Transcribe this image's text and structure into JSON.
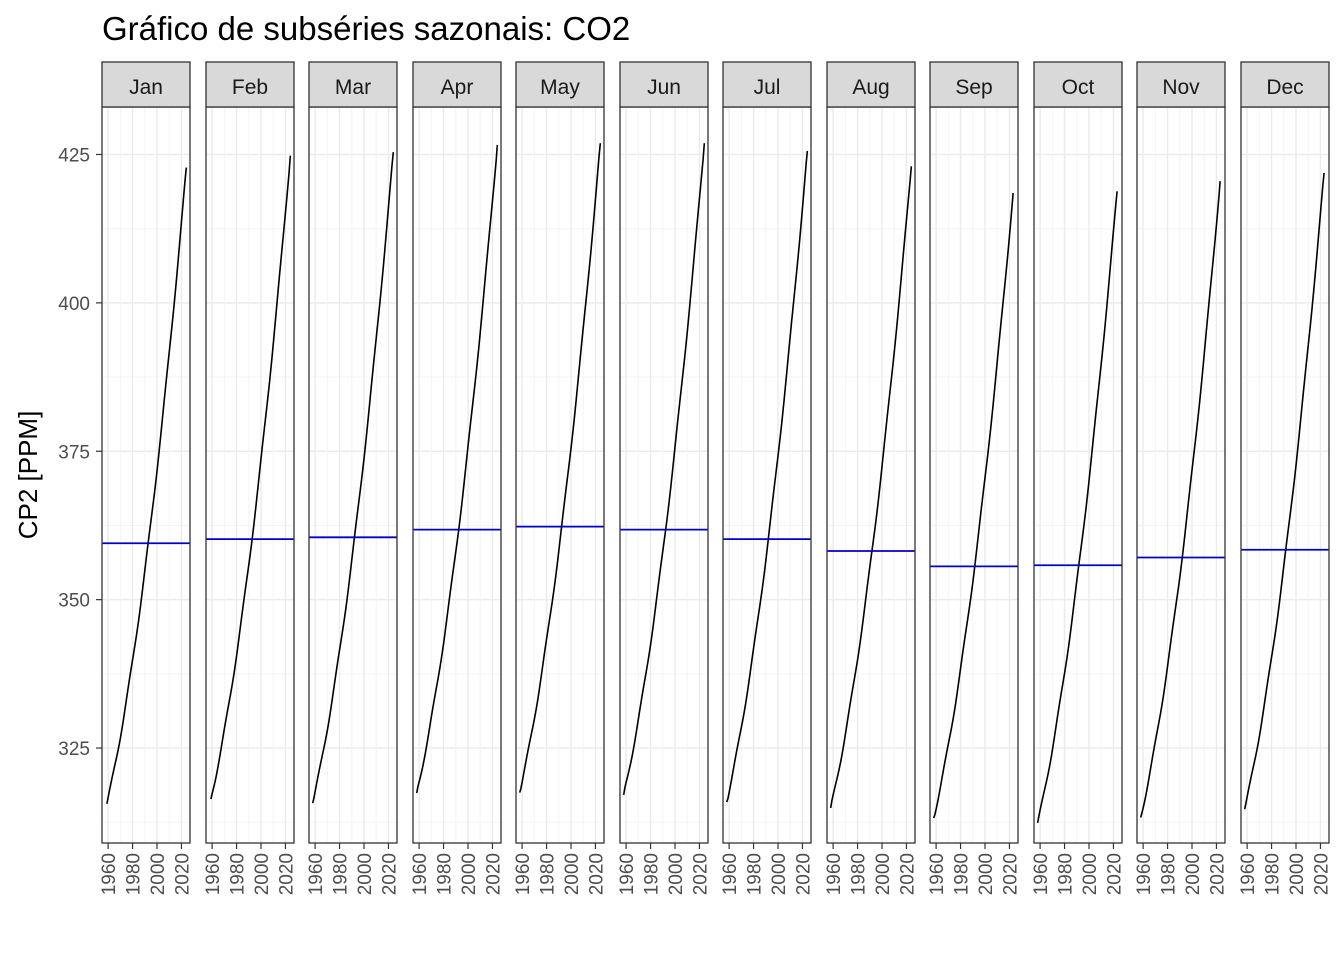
{
  "chart_data": {
    "type": "line",
    "title": "Gráfico de subséries sazonais: CO2",
    "xlabel": "",
    "ylabel": "CP2 [PPM]",
    "ylim": [
      309,
      433
    ],
    "xlim": [
      1955,
      2027
    ],
    "y_ticks": [
      325,
      350,
      375,
      400,
      425
    ],
    "x_ticks": [
      1960,
      1980,
      2000,
      2020
    ],
    "y_tick_labels": [
      "325",
      "350",
      "375",
      "400",
      "425"
    ],
    "x_tick_labels": [
      "1960",
      "1980",
      "2000",
      "2020"
    ],
    "grid": true,
    "legend": "none",
    "colors": {
      "series": "#000000",
      "mean_line": "#0000cc",
      "strip_bg": "#d9d9d9",
      "grid": "#ebebeb"
    },
    "panels": [
      {
        "month": "Jan",
        "mean": 359.5,
        "start": [
          1959,
          315.6
        ],
        "end": [
          2024,
          422.8
        ]
      },
      {
        "month": "Feb",
        "mean": 360.2,
        "start": [
          1959,
          316.4
        ],
        "end": [
          2024,
          424.8
        ]
      },
      {
        "month": "Mar",
        "mean": 360.5,
        "start": [
          1958,
          315.7
        ],
        "end": [
          2024,
          425.4
        ]
      },
      {
        "month": "Apr",
        "mean": 361.8,
        "start": [
          1958,
          317.4
        ],
        "end": [
          2024,
          426.6
        ]
      },
      {
        "month": "May",
        "mean": 362.3,
        "start": [
          1958,
          317.5
        ],
        "end": [
          2024,
          426.9
        ]
      },
      {
        "month": "Jun",
        "mean": 361.8,
        "start": [
          1958,
          317.1
        ],
        "end": [
          2024,
          426.9
        ]
      },
      {
        "month": "Jul",
        "mean": 360.2,
        "start": [
          1958,
          315.9
        ],
        "end": [
          2024,
          425.6
        ]
      },
      {
        "month": "Aug",
        "mean": 358.2,
        "start": [
          1958,
          314.9
        ],
        "end": [
          2024,
          423.0
        ]
      },
      {
        "month": "Sep",
        "mean": 355.6,
        "start": [
          1958,
          313.2
        ],
        "end": [
          2023,
          418.5
        ]
      },
      {
        "month": "Oct",
        "mean": 355.8,
        "start": [
          1958,
          312.4
        ],
        "end": [
          2023,
          418.8
        ]
      },
      {
        "month": "Nov",
        "mean": 357.1,
        "start": [
          1958,
          313.3
        ],
        "end": [
          2023,
          420.5
        ]
      },
      {
        "month": "Dec",
        "mean": 358.4,
        "start": [
          1958,
          314.7
        ],
        "end": [
          2023,
          421.9
        ]
      }
    ]
  }
}
